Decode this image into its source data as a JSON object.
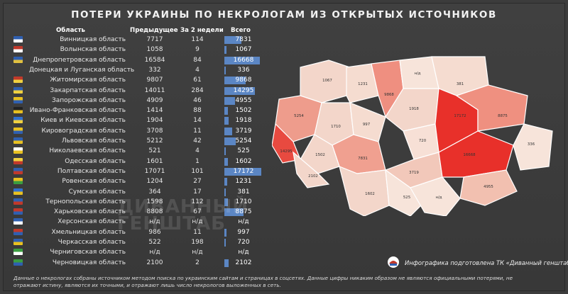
{
  "title": "ПОТЕРИ УКРАИНЫ ПО НЕКРОЛОГАМ ИЗ ОТКРЫТЫХ ИСТОЧНИКОВ",
  "headers": {
    "region": "Область",
    "previous": "Предыдущее",
    "two_weeks": "За 2 недели",
    "total": "Всего"
  },
  "watermark": "ДИВАННЫЙ ГЕНШТАБ",
  "credit": "Инфографика подготовлена ТК «Диванный генштаб»",
  "footnote": "Данные о некрологах собраны источником методом поиска по украинским сайтам и страницах в соцсетях. Данные цифры никаким образом не являются официальными потерями, не отражают истину, являются их точными, и отражают лишь число некрологов выложенных в сеть.",
  "chart_data": {
    "type": "table",
    "max_total": 17172,
    "rows": [
      {
        "region": "Винницкая область",
        "previous": "7717",
        "two_weeks": "114",
        "total": "7831",
        "total_value": 7831,
        "flag": [
          "#2f5fb0",
          "#ffffff"
        ]
      },
      {
        "region": "Волынская область",
        "previous": "1058",
        "two_weeks": "9",
        "total": "1067",
        "total_value": 1067,
        "flag": [
          "#c0392b",
          "#ffffff"
        ]
      },
      {
        "region": "Днепропетровская область",
        "previous": "16584",
        "two_weeks": "84",
        "total": "16668",
        "total_value": 16668,
        "flag": [
          "#2f5fb0",
          "#e0c040"
        ]
      },
      {
        "region": "Донецкая и Луганская область",
        "previous": "332",
        "two_weeks": "4",
        "total": "336",
        "total_value": 336,
        "flag": []
      },
      {
        "region": "Житомирская область",
        "previous": "9807",
        "two_weeks": "61",
        "total": "9868",
        "total_value": 9868,
        "flag": [
          "#c0392b",
          "#f0d040"
        ]
      },
      {
        "region": "Закарпатская область",
        "previous": "14011",
        "two_weeks": "284",
        "total": "14295",
        "total_value": 14295,
        "flag": [
          "#2f5fb0",
          "#f0d040"
        ]
      },
      {
        "region": "Запорожская область",
        "previous": "4909",
        "two_weeks": "46",
        "total": "4955",
        "total_value": 4955,
        "flag": [
          "#e8c020",
          "#2f5fb0"
        ]
      },
      {
        "region": "Ивано-Франковская область",
        "previous": "1414",
        "two_weeks": "88",
        "total": "1502",
        "total_value": 1502,
        "flag": [
          "#222222",
          "#e8c020"
        ]
      },
      {
        "region": "Киев и Киевская область",
        "previous": "1904",
        "two_weeks": "14",
        "total": "1918",
        "total_value": 1918,
        "flag": [
          "#3070d0",
          "#f0d040"
        ]
      },
      {
        "region": "Кировоградская область",
        "previous": "3708",
        "two_weeks": "11",
        "total": "3719",
        "total_value": 3719,
        "flag": [
          "#e8c020",
          "#2f5fb0"
        ]
      },
      {
        "region": "Львовская область",
        "previous": "5212",
        "two_weeks": "42",
        "total": "5254",
        "total_value": 5254,
        "flag": [
          "#2f5fb0",
          "#e8c020"
        ]
      },
      {
        "region": "Николаевская область",
        "previous": "521",
        "two_weeks": "4",
        "total": "525",
        "total_value": 525,
        "flag": [
          "#ffffff",
          "#e8c020"
        ]
      },
      {
        "region": "Одесская область",
        "previous": "1601",
        "two_weeks": "1",
        "total": "1602",
        "total_value": 1602,
        "flag": [
          "#f0d040",
          "#c0392b"
        ]
      },
      {
        "region": "Полтавская область",
        "previous": "17071",
        "two_weeks": "101",
        "total": "17172",
        "total_value": 17172,
        "flag": [
          "#2f5fb0",
          "#c0392b"
        ]
      },
      {
        "region": "Ровенская область",
        "previous": "1204",
        "two_weeks": "27",
        "total": "1231",
        "total_value": 1231,
        "flag": [
          "#e8c020",
          "#3a9d40"
        ]
      },
      {
        "region": "Сумская область",
        "previous": "364",
        "two_weeks": "17",
        "total": "381",
        "total_value": 381,
        "flag": [
          "#3070d0",
          "#e8c020"
        ]
      },
      {
        "region": "Тернопольская область",
        "previous": "1598",
        "two_weeks": "112",
        "total": "1710",
        "total_value": 1710,
        "flag": [
          "#2f5fb0",
          "#c0392b"
        ]
      },
      {
        "region": "Харьковская область",
        "previous": "8808",
        "two_weeks": "67",
        "total": "8875",
        "total_value": 8875,
        "flag": [
          "#c0392b",
          "#2f5fb0"
        ]
      },
      {
        "region": "Херсонская область",
        "previous": "н/д",
        "two_weeks": "н/д",
        "total": "н/д",
        "total_value": 0,
        "flag": [
          "#2f5fb0",
          "#ffffff"
        ]
      },
      {
        "region": "Хмельницкая область",
        "previous": "986",
        "two_weeks": "11",
        "total": "997",
        "total_value": 997,
        "flag": [
          "#c0392b",
          "#2f5fb0"
        ]
      },
      {
        "region": "Черкасская область",
        "previous": "522",
        "two_weeks": "198",
        "total": "720",
        "total_value": 720,
        "flag": [
          "#2f5fb0",
          "#e8c020"
        ]
      },
      {
        "region": "Черниговская область",
        "previous": "н/д",
        "two_weeks": "н/д",
        "total": "н/д",
        "total_value": 0,
        "flag": [
          "#3a9d40",
          "#ffffff"
        ]
      },
      {
        "region": "Черновицкая область",
        "previous": "2100",
        "two_weeks": "2",
        "total": "2102",
        "total_value": 2102,
        "flag": [
          "#3a9d40",
          "#2f5fb0"
        ]
      }
    ],
    "map_labels": [
      "1067",
      "1231",
      "9868",
      "н/д",
      "381",
      "5254",
      "1710",
      "997",
      "7831",
      "1918",
      "720",
      "17172",
      "8875",
      "336",
      "14295",
      "1502",
      "2102",
      "3719",
      "16668",
      "4955",
      "1602",
      "525",
      "н/д"
    ]
  }
}
